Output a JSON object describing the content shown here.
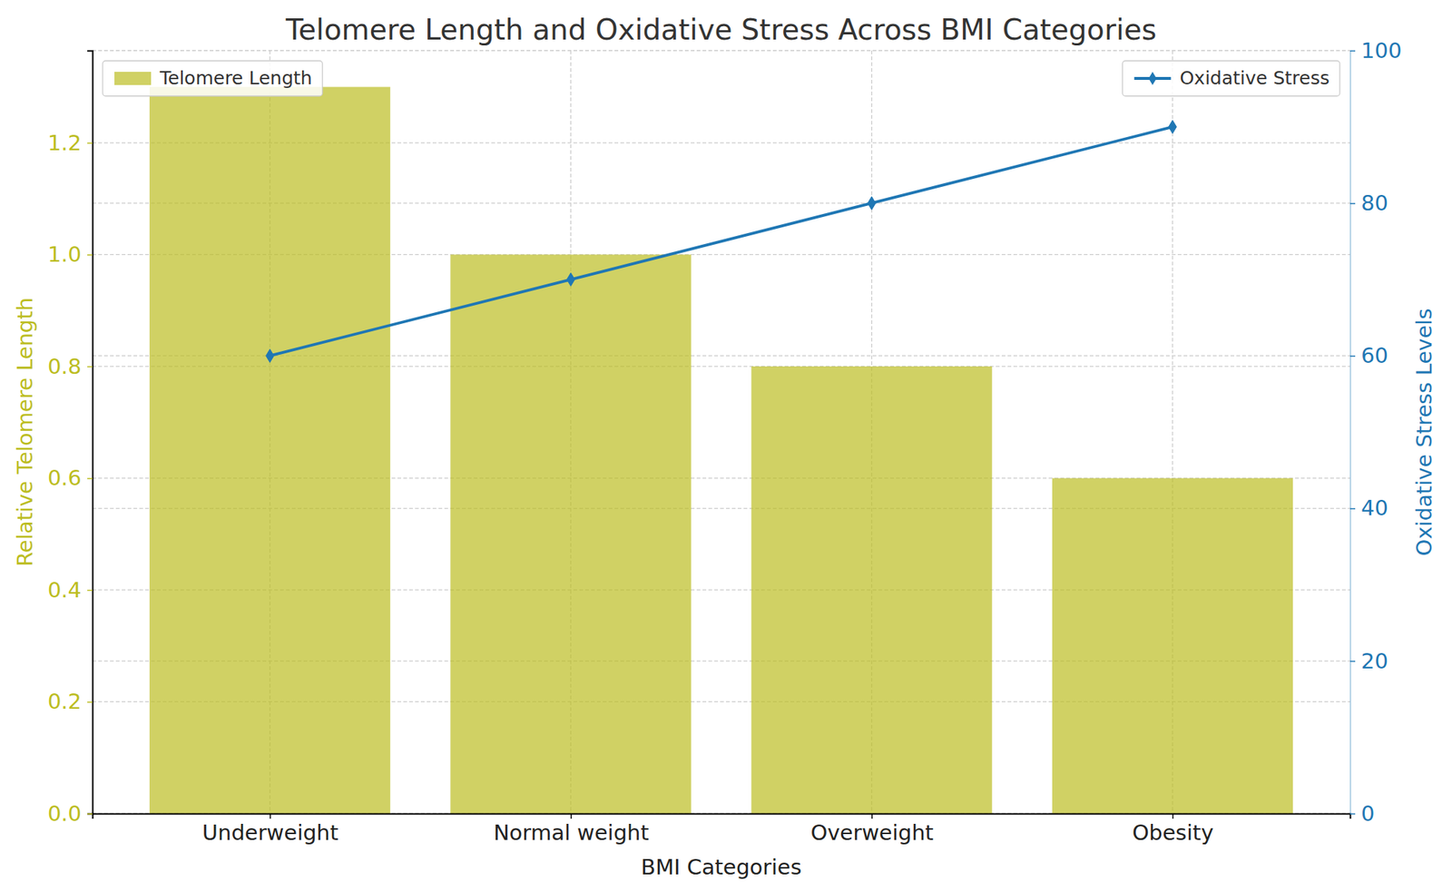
{
  "chart_data": {
    "type": "bar",
    "title": "Telomere Length and Oxidative Stress Across BMI Categories",
    "x_label": "BMI Categories",
    "y_label": "Relative Telomere Length",
    "y2_label": "Oxidative Stress Levels",
    "categories": [
      "Underweight",
      "Normal weight",
      "Overweight",
      "Obesity"
    ],
    "series": [
      {
        "name": "Telomere Length",
        "type": "bar",
        "color": "#bcbd22",
        "values": [
          1.3,
          1.0,
          0.8,
          0.6
        ]
      },
      {
        "name": "Oxidative Stress",
        "type": "line",
        "color": "#1f77b4",
        "marker": "thin_diamond",
        "line_style": "solid",
        "axis": "y2",
        "values": [
          60,
          70,
          80,
          90
        ]
      }
    ],
    "ylim": [
      0,
      1.365
    ],
    "yticks": [
      {
        "value": 0,
        "label": "0.0"
      },
      0.2,
      0.4,
      0.6,
      0.8,
      {
        "value": 1,
        "label": "1.0"
      },
      1.2
    ],
    "y2lim": [
      0,
      100
    ],
    "y2ticks": [
      0,
      20,
      40,
      60,
      80,
      100
    ],
    "grid": true,
    "legend": "upper left"
  }
}
